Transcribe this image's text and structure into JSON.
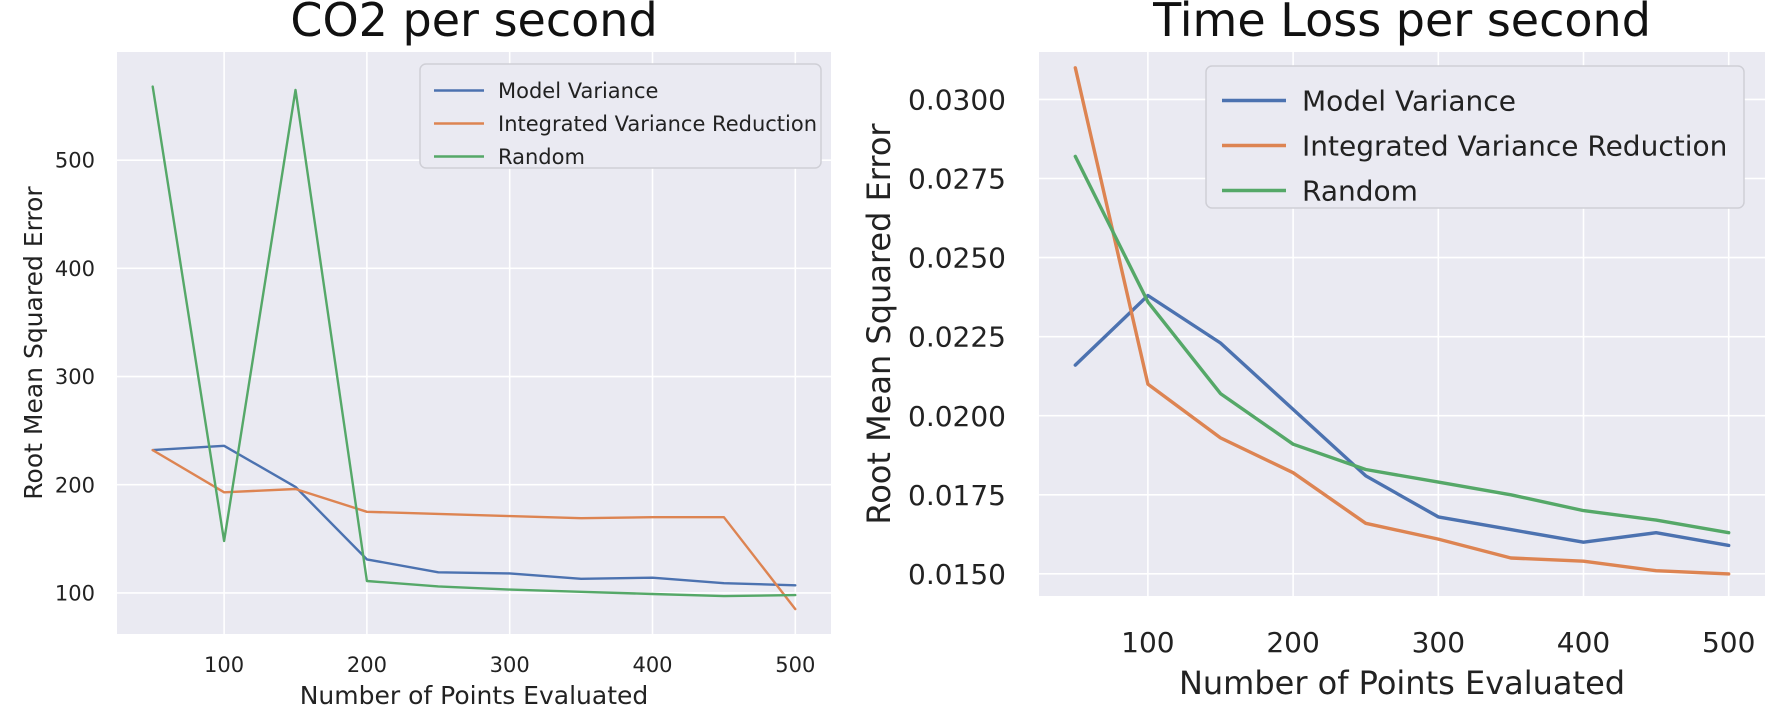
{
  "chart_data": [
    {
      "type": "line",
      "title": "CO2 per second",
      "xlabel": "Number of Points Evaluated",
      "ylabel": "Root Mean Squared Error",
      "x": [
        50,
        100,
        150,
        200,
        250,
        300,
        350,
        400,
        450,
        500
      ],
      "xlim": [
        25,
        525
      ],
      "ylim": [
        62,
        600
      ],
      "xticks": [
        100,
        200,
        300,
        400,
        500
      ],
      "yticks": [
        100,
        200,
        300,
        400,
        500
      ],
      "grid": true,
      "legend_position": "top-right",
      "series": [
        {
          "name": "Model Variance",
          "color": "#4c72b0",
          "values": [
            232,
            236,
            198,
            131,
            119,
            118,
            113,
            114,
            109,
            107
          ]
        },
        {
          "name": "Integrated Variance Reduction",
          "color": "#dd8452",
          "values": [
            232,
            193,
            196,
            175,
            173,
            171,
            169,
            170,
            170,
            85
          ]
        },
        {
          "name": "Random",
          "color": "#55a868",
          "values": [
            568,
            148,
            565,
            111,
            106,
            103,
            101,
            99,
            97,
            98
          ]
        }
      ]
    },
    {
      "type": "line",
      "title": "Time Loss per second",
      "xlabel": "Number of Points Evaluated",
      "ylabel": "Root Mean Squared Error",
      "x": [
        50,
        100,
        150,
        200,
        250,
        300,
        350,
        400,
        450,
        500
      ],
      "xlim": [
        25,
        525
      ],
      "ylim": [
        0.0143,
        0.0315
      ],
      "xticks": [
        100,
        200,
        300,
        400,
        500
      ],
      "yticks": [
        0.015,
        0.0175,
        0.02,
        0.0225,
        0.025,
        0.0275,
        0.03
      ],
      "ytick_labels": [
        "0.0150",
        "0.0175",
        "0.0200",
        "0.0225",
        "0.0250",
        "0.0275",
        "0.0300"
      ],
      "grid": true,
      "legend_position": "top-right",
      "series": [
        {
          "name": "Model Variance",
          "color": "#4c72b0",
          "values": [
            0.0216,
            0.0238,
            0.0223,
            0.0202,
            0.0181,
            0.0168,
            0.0164,
            0.016,
            0.0163,
            0.0159
          ]
        },
        {
          "name": "Integrated Variance Reduction",
          "color": "#dd8452",
          "values": [
            0.031,
            0.021,
            0.0193,
            0.0182,
            0.0166,
            0.0161,
            0.0155,
            0.0154,
            0.0151,
            0.015
          ]
        },
        {
          "name": "Random",
          "color": "#55a868",
          "values": [
            0.0282,
            0.0236,
            0.0207,
            0.0191,
            0.0183,
            0.0179,
            0.0175,
            0.017,
            0.0167,
            0.0163
          ]
        }
      ]
    }
  ]
}
